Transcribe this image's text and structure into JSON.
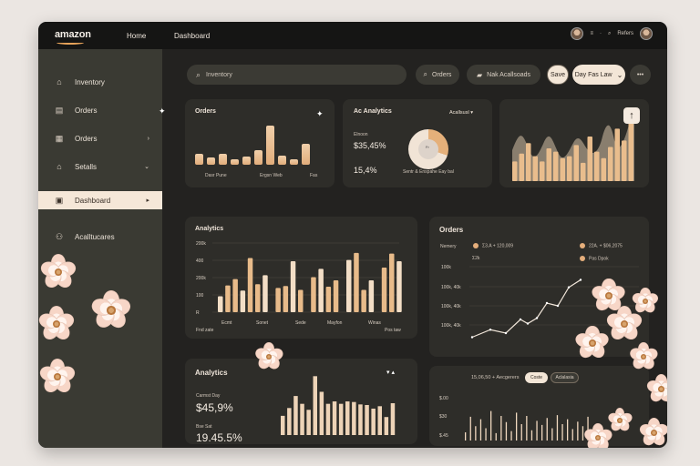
{
  "topbar": {
    "logo": "amazon",
    "nav_home": "Home",
    "nav_dashboard": "Dashboard",
    "right_text_1": "≡",
    "right_text_2": "Refers"
  },
  "sidebar": {
    "items": [
      {
        "label": "Inventory",
        "icon": "home-icon",
        "suffix": ""
      },
      {
        "label": "Orders",
        "icon": "document-icon",
        "suffix": "✦"
      },
      {
        "label": "Orders",
        "icon": "list-icon",
        "suffix": "›"
      },
      {
        "label": "Setalls",
        "icon": "home-icon",
        "suffix": "⌄"
      },
      {
        "label": "Dashboard",
        "icon": "calendar-icon",
        "suffix": "▸"
      },
      {
        "label": "Acalltucares",
        "icon": "people-icon",
        "suffix": ""
      }
    ]
  },
  "toolbar": {
    "search_placeholder": "Inventory",
    "orders_label": "Orders",
    "nak_label": "Nak Acallsoads",
    "save_label": "Save",
    "day_label": "Day Fas Law",
    "more_label": "•••"
  },
  "cards": {
    "orders_mini": {
      "title": "Orders",
      "bars": [
        0.24,
        0.16,
        0.24,
        0.12,
        0.18,
        0.3,
        0.82,
        0.2,
        0.12,
        0.44
      ],
      "labels": [
        "Dasr Pune",
        "Ergsn Web",
        "Fas"
      ]
    },
    "analytics_donut": {
      "title_prefix": "Ac",
      "title": "Analytics",
      "select": "Acallsusl",
      "small_label": "Elnoon",
      "value": "$35,45%",
      "value2": "15,4%",
      "donut_center": "Fr",
      "caption": "Sentr & Enspahe Eay bal"
    },
    "analytics_chart": {
      "title": "Analytics",
      "y_ticks": [
        "200k",
        "400",
        "200k",
        "100",
        "R"
      ],
      "x_labels": [
        "Fnd zate",
        "Ecmt",
        "Sonet",
        "Sede",
        "Mayfon",
        "Winas",
        "Pos taw"
      ],
      "bars": [
        0.25,
        0.42,
        0.52,
        0.34,
        0.85,
        0.44,
        0.58,
        0.38,
        0.41,
        0.8,
        0.35,
        0.55,
        0.68,
        0.4,
        0.5,
        0.82,
        0.93,
        0.35,
        0.5,
        0.7,
        0.92,
        0.8
      ]
    },
    "orders_line": {
      "title": "Orders",
      "left_label": "Nemery",
      "left_sub": "Σ2k",
      "legend1": "Σ3.A + 120,009",
      "legend2": "22A. + $06,2075",
      "legend3": "Pas Dpok",
      "y_ticks": [
        "100k",
        "100k, 40k",
        "100k, 40k",
        "100k, 40k"
      ],
      "points": [
        0.06,
        0.17,
        0.12,
        0.32,
        0.26,
        0.34,
        0.56,
        0.52,
        0.79,
        0.9
      ]
    },
    "analytics_bottom": {
      "title": "Analytics",
      "label1": "Carmst Day",
      "value1": "$45,9%",
      "label2": "Bse Sat",
      "value2": "19.45.5%",
      "bars": [
        0.32,
        0.45,
        0.65,
        0.52,
        0.42,
        0.98,
        0.72,
        0.52,
        0.56,
        0.52,
        0.56,
        0.55,
        0.51,
        0.5,
        0.44,
        0.48,
        0.3,
        0.53
      ]
    },
    "bottom_right": {
      "header": "15,06,50 + Aecgerers",
      "tab1": "Coste",
      "tab2": "Aclalasia",
      "y_ticks": [
        "$.00",
        "$30",
        "$.45"
      ],
      "bars": [
        0.2,
        0.58,
        0.35,
        0.52,
        0.3,
        0.72,
        0.18,
        0.6,
        0.45,
        0.23,
        0.68,
        0.4,
        0.6,
        0.25,
        0.48,
        0.38,
        0.55,
        0.3,
        0.62,
        0.4,
        0.52,
        0.28,
        0.46,
        0.35,
        0.58,
        0.2,
        0.41
      ]
    }
  },
  "colors": {
    "accent": "#e5ae7b",
    "sidebar": "#3a3a33",
    "background": "#232220",
    "card": "#2e2d29"
  }
}
